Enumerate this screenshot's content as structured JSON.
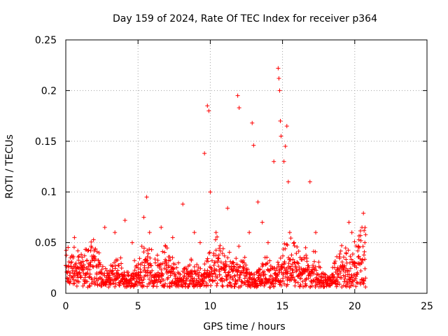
{
  "chart_data": {
    "type": "scatter",
    "title": "Day 159 of 2024, Rate Of TEC Index for receiver p364",
    "xlabel": "GPS time / hours",
    "ylabel": "ROTI / TECUs",
    "xlim": [
      0,
      25
    ],
    "ylim": [
      0,
      0.25
    ],
    "x_ticks": [
      "0",
      "5",
      "10",
      "15",
      "20",
      "25"
    ],
    "y_ticks": [
      "0",
      "0.05",
      "0.1",
      "0.15",
      "0.2",
      "0.25"
    ],
    "grid": true,
    "marker": "plus",
    "color": "#ff0000",
    "series": [
      {
        "x": [
          0.1,
          0.3,
          0.5,
          0.6,
          0.8,
          1.0,
          1.2,
          1.5,
          1.8,
          2.0,
          2.3,
          2.7,
          3.0,
          3.4,
          3.8,
          4.1,
          4.3,
          4.6,
          5.0,
          5.4,
          5.6,
          5.8,
          6.2,
          6.6,
          7.0,
          7.4,
          7.8,
          8.1,
          8.5,
          8.9,
          9.3,
          9.6,
          9.8,
          9.9,
          10.0,
          10.4,
          10.8,
          11.2,
          11.6,
          11.9,
          12.0,
          12.3,
          12.7,
          12.9,
          13.0,
          13.3,
          13.6,
          14.0,
          14.4,
          14.7,
          14.75,
          14.8,
          14.85,
          14.9,
          15.1,
          15.2,
          15.3,
          15.4,
          15.5,
          15.8,
          16.2,
          16.6,
          16.9,
          17.3,
          17.8,
          18.2,
          18.6,
          19.0,
          19.4,
          19.6,
          19.8,
          20.0,
          20.3,
          20.5,
          20.6,
          20.7,
          20.75
        ],
        "y": [
          0.012,
          0.02,
          0.035,
          0.055,
          0.018,
          0.03,
          0.025,
          0.02,
          0.045,
          0.015,
          0.04,
          0.065,
          0.02,
          0.06,
          0.035,
          0.072,
          0.018,
          0.05,
          0.025,
          0.075,
          0.095,
          0.06,
          0.03,
          0.065,
          0.02,
          0.055,
          0.03,
          0.088,
          0.02,
          0.06,
          0.05,
          0.138,
          0.185,
          0.18,
          0.1,
          0.06,
          0.025,
          0.084,
          0.03,
          0.195,
          0.183,
          0.02,
          0.06,
          0.168,
          0.146,
          0.09,
          0.07,
          0.05,
          0.13,
          0.222,
          0.212,
          0.2,
          0.17,
          0.155,
          0.13,
          0.145,
          0.165,
          0.11,
          0.06,
          0.05,
          0.02,
          0.045,
          0.11,
          0.06,
          0.02,
          0.015,
          0.03,
          0.02,
          0.04,
          0.07,
          0.06,
          0.03,
          0.045,
          0.065,
          0.079,
          0.05,
          0.015
        ]
      }
    ]
  }
}
